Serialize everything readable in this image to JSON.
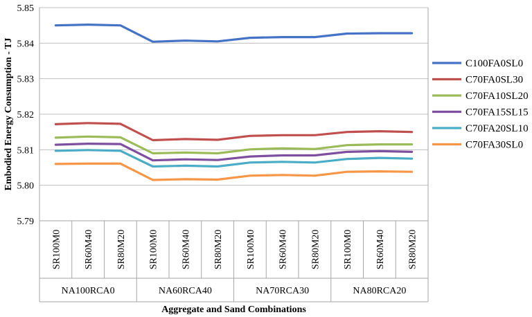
{
  "chart_data": {
    "type": "line",
    "title": "",
    "xlabel": "Aggregate and Sand Combinations",
    "ylabel": "Embodied  Energy Consumption - TJ",
    "ylim": [
      5.79,
      5.85
    ],
    "yticks": [
      "5.79",
      "5.80",
      "5.81",
      "5.82",
      "5.83",
      "5.84",
      "5.85"
    ],
    "grid": "horizontal",
    "legend_position": "right",
    "groups": [
      {
        "label": "NA100RCA0",
        "categories": [
          "SR100M0",
          "SR60M40",
          "SR80M20"
        ]
      },
      {
        "label": "NA60RCA40",
        "categories": [
          "SR100M0",
          "SR60M40",
          "SR80M20"
        ]
      },
      {
        "label": "NA70RCA30",
        "categories": [
          "SR100M0",
          "SR60M40",
          "SR80M20"
        ]
      },
      {
        "label": "NA80RCA20",
        "categories": [
          "SR100M0",
          "SR60M40",
          "SR80M20"
        ]
      }
    ],
    "series": [
      {
        "name": "C100FA0SL0",
        "color": "#4472C4",
        "values": [
          5.845,
          5.8452,
          5.845,
          5.8404,
          5.8407,
          5.8405,
          5.8415,
          5.8417,
          5.8417,
          5.8427,
          5.8428,
          5.8428
        ]
      },
      {
        "name": "C70FA0SL30",
        "color": "#C0504D",
        "values": [
          5.8172,
          5.8175,
          5.8173,
          5.8127,
          5.813,
          5.8128,
          5.8139,
          5.8141,
          5.8141,
          5.815,
          5.8152,
          5.815
        ]
      },
      {
        "name": "C70FA10SL20",
        "color": "#9BBB59",
        "values": [
          5.8134,
          5.8137,
          5.8135,
          5.809,
          5.8092,
          5.809,
          5.8101,
          5.8104,
          5.8102,
          5.8113,
          5.8115,
          5.8115
        ]
      },
      {
        "name": "C70FA15SL15",
        "color": "#7F4F9F",
        "values": [
          5.8114,
          5.8117,
          5.8116,
          5.807,
          5.8073,
          5.8071,
          5.8081,
          5.8084,
          5.8084,
          5.8094,
          5.8096,
          5.8094
        ]
      },
      {
        "name": "C70FA20SL10",
        "color": "#4BACC6",
        "values": [
          5.8097,
          5.8099,
          5.8097,
          5.8053,
          5.8055,
          5.8053,
          5.8064,
          5.8066,
          5.8064,
          5.8074,
          5.8077,
          5.8075
        ]
      },
      {
        "name": "C70FA30SL0",
        "color": "#F79646",
        "values": [
          5.806,
          5.8061,
          5.8061,
          5.8015,
          5.8017,
          5.8016,
          5.8027,
          5.8029,
          5.8027,
          5.8038,
          5.8039,
          5.8038
        ]
      }
    ]
  }
}
